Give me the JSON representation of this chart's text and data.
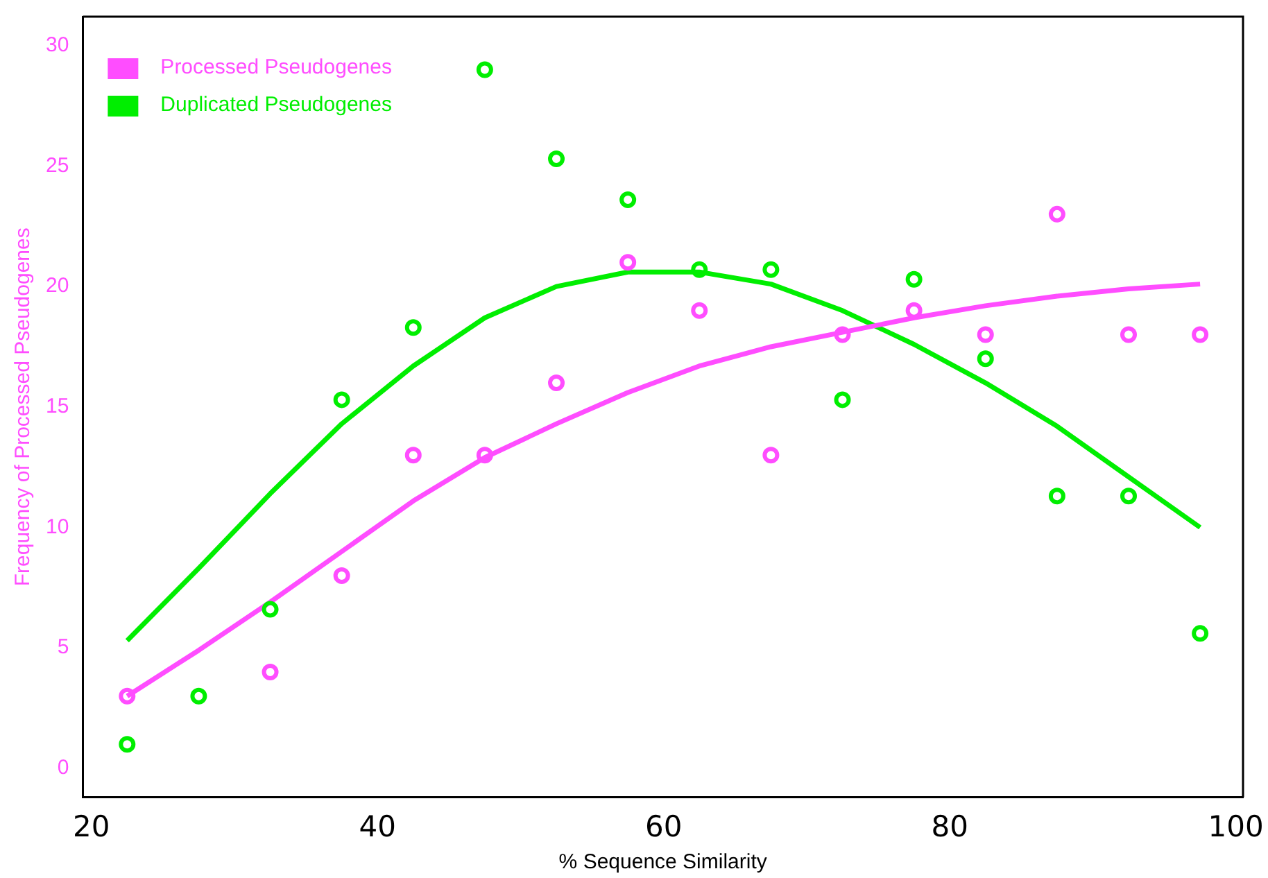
{
  "chart_data": {
    "type": "scatter",
    "xlabel": "% Sequence Similarity",
    "ylabel": "Frequency of Processed Pseudogenes",
    "xlim": [
      19.4,
      100.5
    ],
    "xticks": [
      20,
      40,
      60,
      80,
      100
    ],
    "ylim": [
      -1.2,
      31.2
    ],
    "yticks": [
      0,
      5,
      10,
      15,
      20,
      25,
      30
    ],
    "grid": false,
    "legend": "top left",
    "series": [
      {
        "name": "Processed Pseudogenes",
        "color": "#ff4dff",
        "marker": "circle",
        "x": [
          22.5,
          32.5,
          37.5,
          42.5,
          47.5,
          52.5,
          57.5,
          62.5,
          67.5,
          72.5,
          77.5,
          82.5,
          87.5,
          92.5,
          97.5
        ],
        "values": [
          3,
          4,
          8,
          13,
          13,
          16,
          21,
          19,
          13,
          18,
          19,
          18,
          23,
          18,
          18
        ]
      },
      {
        "name": "Duplicated Pseudogenes",
        "color": "#00ee00",
        "marker": "circle",
        "x": [
          22.5,
          27.5,
          32.5,
          37.5,
          42.5,
          47.5,
          52.5,
          57.5,
          62.5,
          67.5,
          72.5,
          77.5,
          82.5,
          87.5,
          92.5,
          97.5
        ],
        "values": [
          1,
          3,
          6.6,
          15.3,
          18.3,
          29,
          25.3,
          23.6,
          20.7,
          20.7,
          15.3,
          20.3,
          17,
          11.3,
          11.3,
          5.6
        ]
      },
      {
        "type": "line",
        "color": "#ff4dff",
        "marker": "none",
        "x": [
          22.5,
          27.5,
          32.5,
          37.5,
          42.5,
          47.5,
          52.5,
          57.5,
          62.5,
          67.5,
          72.5,
          77.5,
          82.5,
          87.5,
          92.5,
          97.5
        ],
        "values": [
          3,
          4.9,
          6.9,
          9,
          11.1,
          12.9,
          14.3,
          15.6,
          16.7,
          17.5,
          18.1,
          18.7,
          19.2,
          19.6,
          19.9,
          20.1
        ]
      },
      {
        "type": "line",
        "color": "#00ee00",
        "marker": "none",
        "x": [
          22.5,
          27.5,
          32.5,
          37.5,
          42.5,
          47.5,
          52.5,
          57.5,
          62.5,
          67.5,
          72.5,
          77.5,
          82.5,
          87.5,
          92.5,
          97.5
        ],
        "values": [
          5.3,
          8.3,
          11.4,
          14.3,
          16.7,
          18.7,
          20,
          20.6,
          20.6,
          20.1,
          19,
          17.6,
          16,
          14.2,
          12.1,
          10
        ]
      }
    ]
  }
}
